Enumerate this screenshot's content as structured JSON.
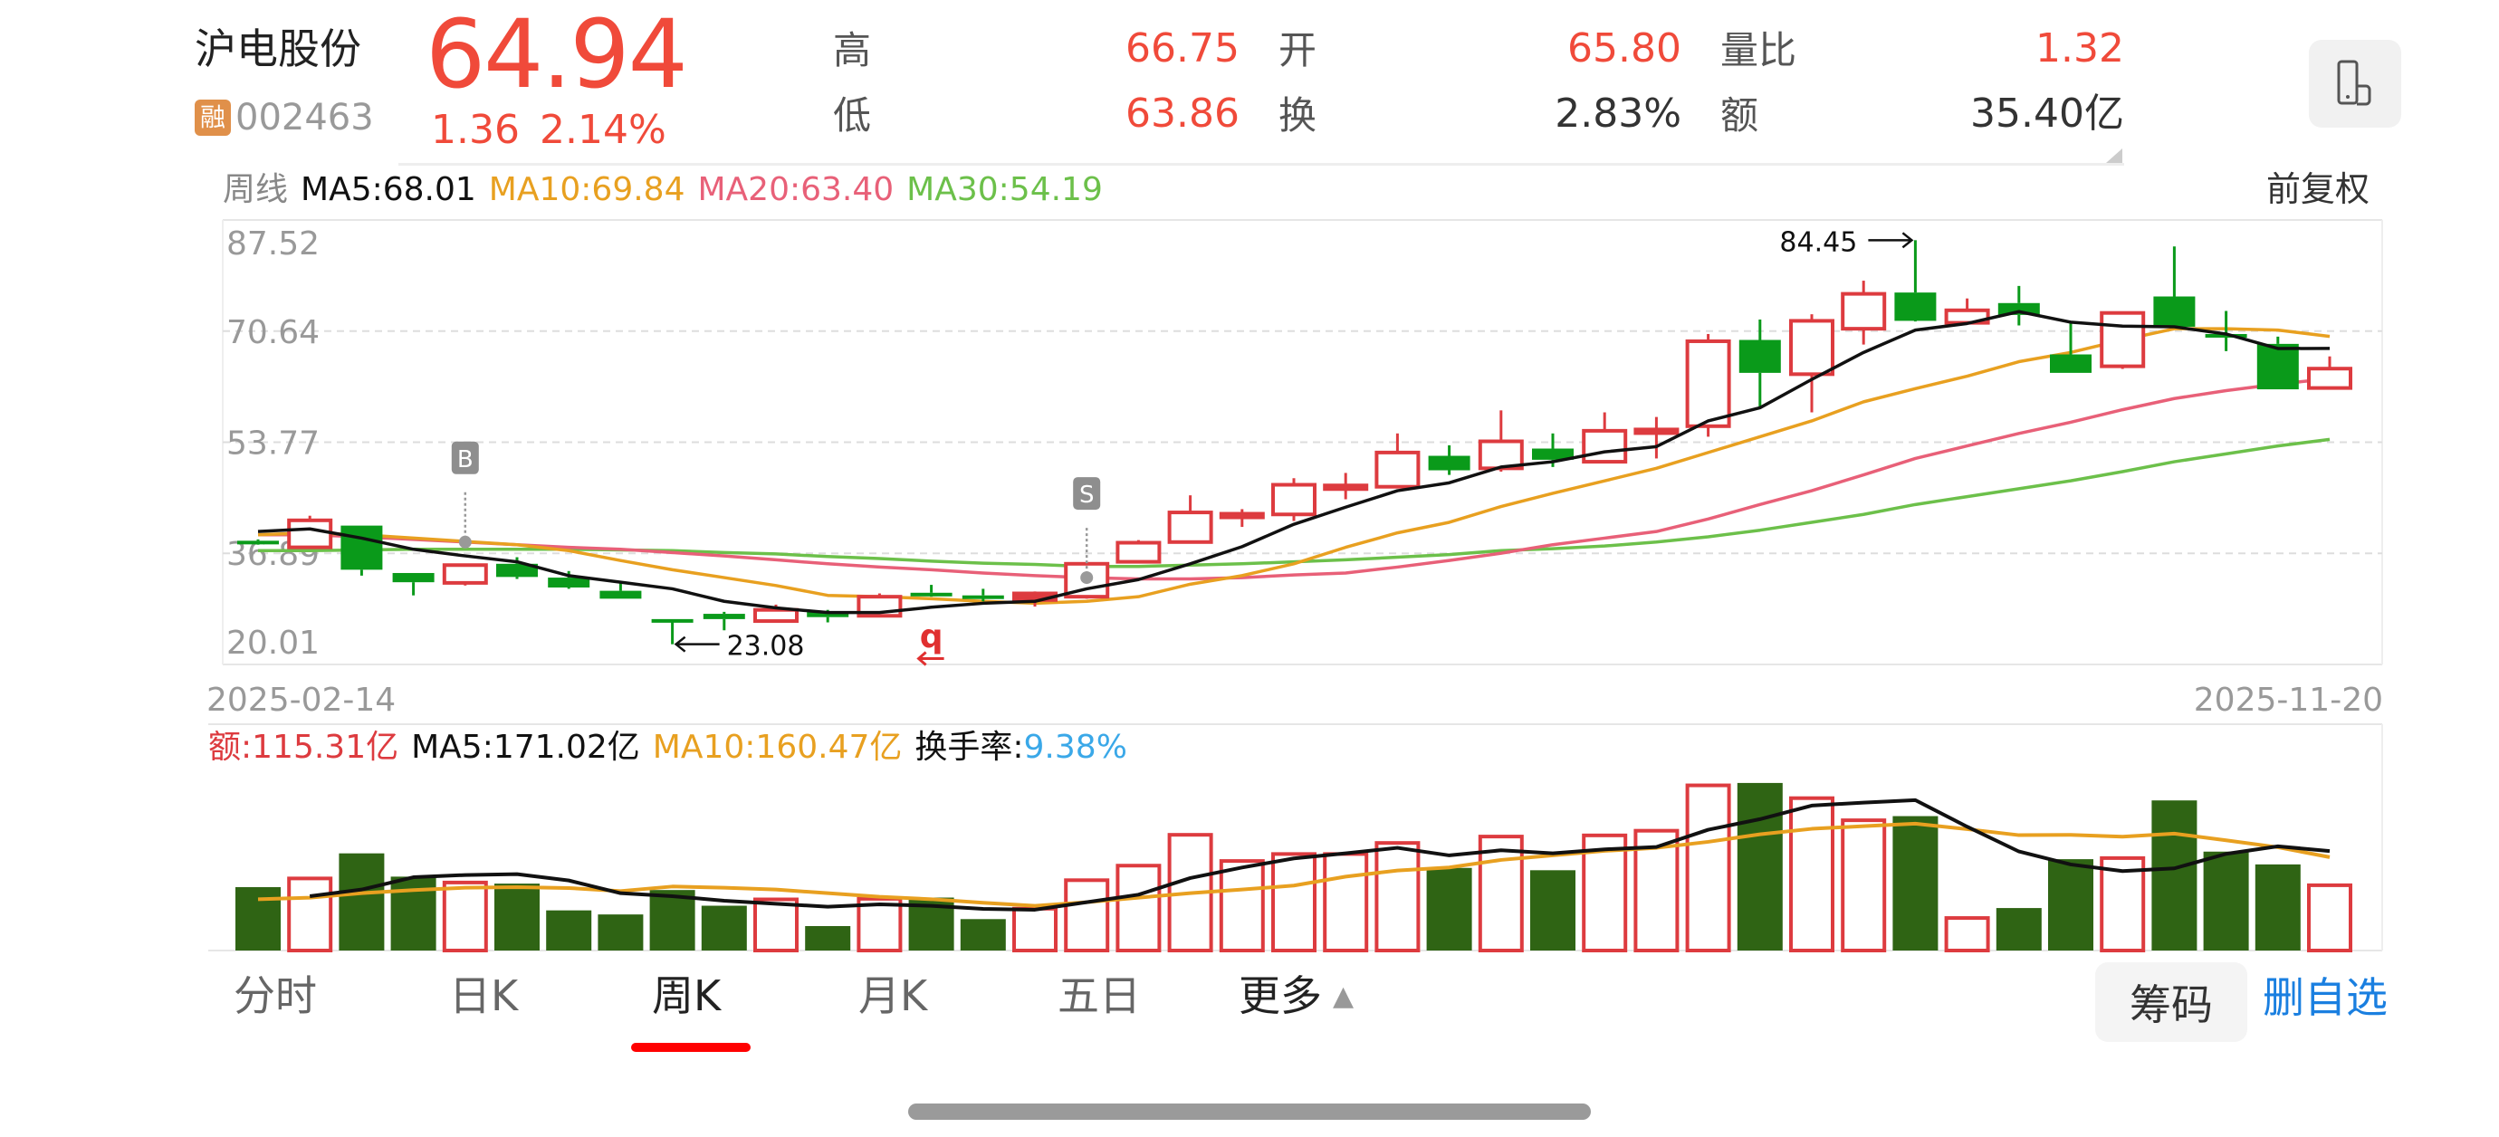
{
  "header": {
    "stock_name": "沪电股份",
    "price": "64.94",
    "badge": "融",
    "code": "002463",
    "change": "1.36",
    "change_pct": "2.14%",
    "stats": [
      {
        "label": "高",
        "value": "66.75",
        "color": "#f04a3a"
      },
      {
        "label": "开",
        "value": "65.80",
        "color": "#f04a3a"
      },
      {
        "label": "量比",
        "value": "1.32",
        "color": "#f04a3a"
      },
      {
        "label": "低",
        "value": "63.86",
        "color": "#f04a3a"
      },
      {
        "label": "换",
        "value": "2.83%",
        "color": "#333333"
      },
      {
        "label": "额",
        "value": "35.40亿",
        "color": "#333333"
      }
    ],
    "icon": "phone-landscape-icon"
  },
  "ma_legend": {
    "period": "周线",
    "ma5": "MA5:68.01",
    "ma10": "MA10:69.84",
    "ma20": "MA20:63.40",
    "ma30": "MA30:54.19",
    "adjust": "前复权"
  },
  "volume_legend": {
    "amount": "额:115.31亿",
    "ma5": "MA5:171.02亿",
    "ma10": "MA10:160.47亿",
    "turnover_label": "换手率:",
    "turnover_value": "9.38%"
  },
  "colors": {
    "up": "#dd3b3f",
    "down": "#0a9a1a",
    "vol_down": "#2f6414",
    "ma5": "#111111",
    "ma10": "#e8a020",
    "ma20": "#e86078",
    "ma30": "#6cc04a",
    "accent_blue": "#1a7fe0",
    "turnover": "#3aa8e8"
  },
  "chart_data": [
    {
      "type": "candlestick",
      "ylim": [
        20.01,
        87.52
      ],
      "y_ticks": [
        "87.52",
        "70.64",
        "53.77",
        "36.89",
        "20.01"
      ],
      "x_start": "2025-02-14",
      "x_end": "2025-11-20",
      "grid": true,
      "annotations": {
        "high": "84.45",
        "low": "23.08",
        "buy_marker": "B",
        "sell_marker": "S",
        "marker_q": "q"
      },
      "ohlc": [
        [
          38.8,
          39.0,
          38.2,
          38.4
        ],
        [
          37.8,
          42.6,
          37.7,
          41.9
        ],
        [
          41.1,
          41.1,
          33.5,
          34.4
        ],
        [
          33.9,
          33.9,
          30.5,
          32.5
        ],
        [
          32.4,
          35.1,
          32.0,
          35.1
        ],
        [
          35.3,
          36.3,
          33.0,
          33.3
        ],
        [
          33.2,
          34.2,
          31.5,
          31.7
        ],
        [
          31.2,
          32.4,
          30.0,
          30.0
        ],
        [
          26.9,
          26.9,
          23.08,
          26.6
        ],
        [
          27.7,
          28.0,
          25.2,
          26.9
        ],
        [
          26.6,
          29.1,
          26.4,
          28.3
        ],
        [
          28.1,
          28.3,
          26.4,
          27.2
        ],
        [
          27.4,
          30.8,
          27.3,
          30.3
        ],
        [
          30.9,
          32.1,
          30.3,
          30.6
        ],
        [
          30.5,
          31.5,
          29.6,
          30.4
        ],
        [
          29.8,
          31.1,
          28.8,
          30.8
        ],
        [
          30.3,
          35.3,
          30.0,
          35.3
        ],
        [
          35.6,
          38.9,
          35.6,
          38.5
        ],
        [
          38.6,
          45.7,
          38.5,
          43.1
        ],
        [
          42.6,
          43.6,
          40.9,
          42.9
        ],
        [
          42.8,
          48.3,
          41.8,
          47.3
        ],
        [
          47.0,
          49.1,
          45.1,
          47.2
        ],
        [
          47.0,
          55.1,
          47.0,
          52.2
        ],
        [
          51.7,
          53.3,
          48.8,
          49.5
        ],
        [
          49.8,
          58.6,
          49.3,
          53.9
        ],
        [
          52.8,
          55.1,
          50.0,
          51.1
        ],
        [
          50.8,
          58.3,
          50.8,
          55.5
        ],
        [
          55.5,
          57.6,
          51.3,
          55.7
        ],
        [
          56.2,
          70.2,
          54.6,
          69.1
        ],
        [
          69.3,
          72.4,
          59.2,
          64.3
        ],
        [
          64.1,
          73.2,
          58.3,
          72.2
        ],
        [
          71.0,
          78.3,
          68.6,
          76.3
        ],
        [
          76.5,
          84.45,
          72.1,
          72.2
        ],
        [
          71.9,
          75.6,
          71.8,
          73.8
        ],
        [
          74.9,
          77.5,
          71.5,
          73.1
        ],
        [
          67.1,
          72.0,
          64.3,
          64.3
        ],
        [
          65.3,
          73.4,
          64.9,
          73.4
        ],
        [
          75.9,
          83.5,
          71.3,
          71.3
        ],
        [
          70.2,
          73.7,
          67.6,
          69.7
        ],
        [
          68.7,
          69.8,
          61.8,
          61.8
        ],
        [
          62.0,
          66.8,
          61.8,
          64.94
        ]
      ],
      "filled_up_candles": [
        16
      ],
      "ma5": [
        40.2,
        40.6,
        39.2,
        37.5,
        36.5,
        35.6,
        33.5,
        32.5,
        31.5,
        29.6,
        28.6,
        27.9,
        27.9,
        28.7,
        29.3,
        29.6,
        31.5,
        32.9,
        35.3,
        37.9,
        41.3,
        43.9,
        46.4,
        47.6,
        50.0,
        50.8,
        52.3,
        53.1,
        57.0,
        59.0,
        63.3,
        67.4,
        70.8,
        71.8,
        73.6,
        72.0,
        71.4,
        71.3,
        70.2,
        68.0,
        68.01
      ],
      "ma10": [
        39.7,
        40.0,
        39.7,
        39.2,
        38.7,
        38.2,
        37.3,
        35.8,
        34.4,
        33.2,
        32.0,
        30.5,
        30.3,
        30.0,
        29.6,
        29.3,
        29.6,
        30.3,
        32.2,
        33.5,
        35.3,
        37.8,
        40.0,
        41.6,
        44.0,
        46.0,
        47.9,
        49.8,
        52.2,
        54.6,
        57.0,
        59.9,
        61.9,
        63.8,
        66.0,
        67.4,
        69.3,
        71.0,
        71.0,
        70.8,
        69.84
      ],
      "ma20": [
        39.7,
        39.7,
        39.4,
        39.0,
        38.6,
        38.2,
        37.8,
        37.5,
        37.0,
        36.5,
        35.9,
        35.3,
        34.8,
        34.4,
        33.9,
        33.5,
        33.2,
        33.0,
        33.0,
        33.2,
        33.6,
        33.9,
        34.8,
        35.8,
        36.9,
        38.2,
        39.2,
        40.2,
        42.1,
        44.3,
        46.4,
        48.8,
        51.3,
        53.2,
        55.1,
        56.8,
        58.7,
        60.4,
        61.6,
        62.6,
        63.4
      ],
      "ma30": [
        37.3,
        37.3,
        37.4,
        37.5,
        37.5,
        37.5,
        37.5,
        37.4,
        37.3,
        37.0,
        36.8,
        36.4,
        36.1,
        35.7,
        35.4,
        35.2,
        34.9,
        34.9,
        35.1,
        35.3,
        35.6,
        35.9,
        36.3,
        36.7,
        37.3,
        37.6,
        38.0,
        38.6,
        39.4,
        40.4,
        41.6,
        42.8,
        44.3,
        45.5,
        46.7,
        47.9,
        49.3,
        50.8,
        52.0,
        53.2,
        54.19
      ]
    },
    {
      "type": "bar",
      "unit": "亿",
      "ylim": [
        0,
        389
      ],
      "values": [
        109,
        127,
        167,
        127,
        120,
        115,
        69,
        62,
        104,
        77,
        91,
        42,
        92,
        91,
        54,
        75,
        124,
        149,
        202,
        157,
        169,
        169,
        188,
        142,
        199,
        138,
        201,
        209,
        287,
        288,
        265,
        227,
        231,
        59,
        73,
        157,
        162,
        258,
        170,
        148,
        115.31
      ],
      "ma5": [
        null,
        93.4,
        104.8,
        126,
        129.8,
        131.3,
        120.4,
        98.6,
        93.4,
        85.6,
        80.4,
        75.3,
        79.4,
        76.8,
        71.6,
        70.1,
        83.0,
        96.0,
        124.6,
        142.7,
        158.3,
        167.1,
        176.5,
        163.5,
        172.3,
        167.1,
        173.9,
        178.0,
        207.6,
        225.8,
        249.1,
        254.3,
        258.5,
        212.8,
        170.2,
        147.9,
        136.5,
        141.2,
        166.1,
        179.1,
        171.02
      ],
      "ma10": [
        88.2,
        90.8,
        98.6,
        103.8,
        108.0,
        109.0,
        107.4,
        102.2,
        110.0,
        108.0,
        104.8,
        98.6,
        92.4,
        88.2,
        82.0,
        76.8,
        83.0,
        90.8,
        98.6,
        104.8,
        111.6,
        127,
        137.5,
        142.7,
        155.7,
        163.5,
        171.3,
        176.5,
        186.8,
        199.8,
        209.2,
        213.8,
        218.0,
        208.6,
        198.3,
        198.8,
        195.7,
        200.9,
        189.4,
        177.5,
        160.47
      ]
    }
  ],
  "tabs": [
    {
      "label": "分时"
    },
    {
      "label": "日K"
    },
    {
      "label": "周K",
      "active": true
    },
    {
      "label": "月K"
    },
    {
      "label": "五日"
    },
    {
      "label": "更多"
    }
  ],
  "buttons": {
    "chips": "筹码",
    "remove_watchlist": "删自选"
  }
}
